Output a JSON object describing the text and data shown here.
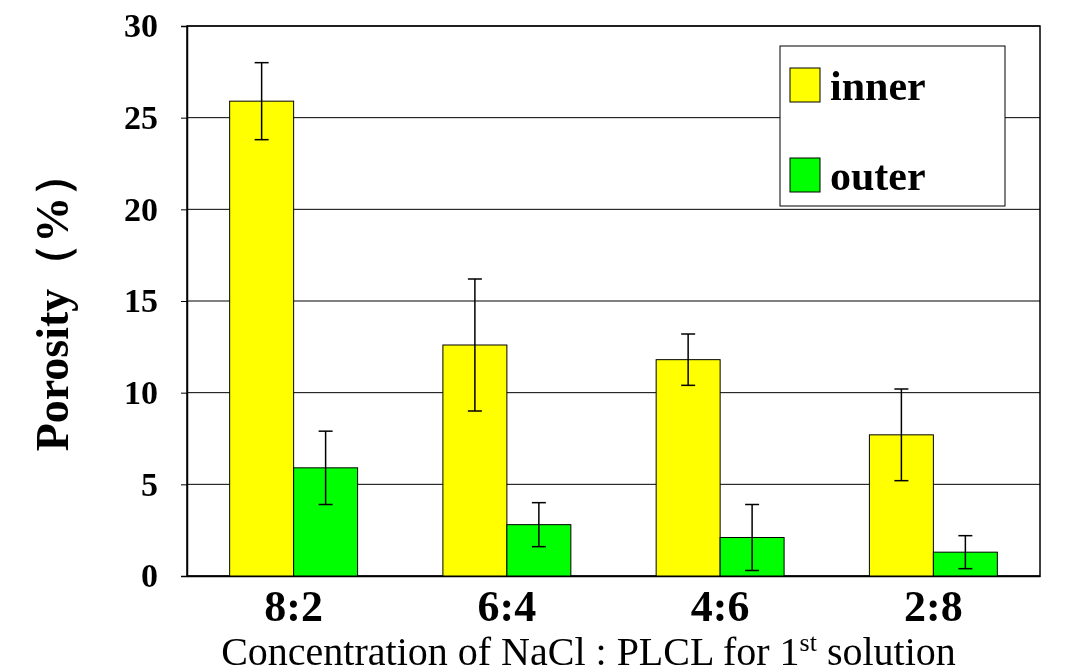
{
  "chart_data": {
    "type": "bar",
    "xlabel": "Concentration of NaCl : PLCL for 1$^{st}$ solution",
    "ylabel": "Porosity（%）",
    "categories": [
      "8:2",
      "6:4",
      "4:6",
      "2:8"
    ],
    "series": [
      {
        "name": "inner",
        "color": "#ffff00",
        "values": [
          25.9,
          12.6,
          11.8,
          7.7
        ],
        "errors": [
          2.1,
          3.6,
          1.4,
          2.5
        ]
      },
      {
        "name": "outer",
        "color": "#00ff00",
        "values": [
          5.9,
          2.8,
          2.1,
          1.3
        ],
        "errors": [
          2.0,
          1.2,
          1.8,
          0.9
        ]
      }
    ],
    "ylim": [
      0,
      30
    ],
    "yticks": [
      0,
      5,
      10,
      15,
      20,
      25,
      30
    ],
    "grid": "y",
    "legend": "top right"
  }
}
